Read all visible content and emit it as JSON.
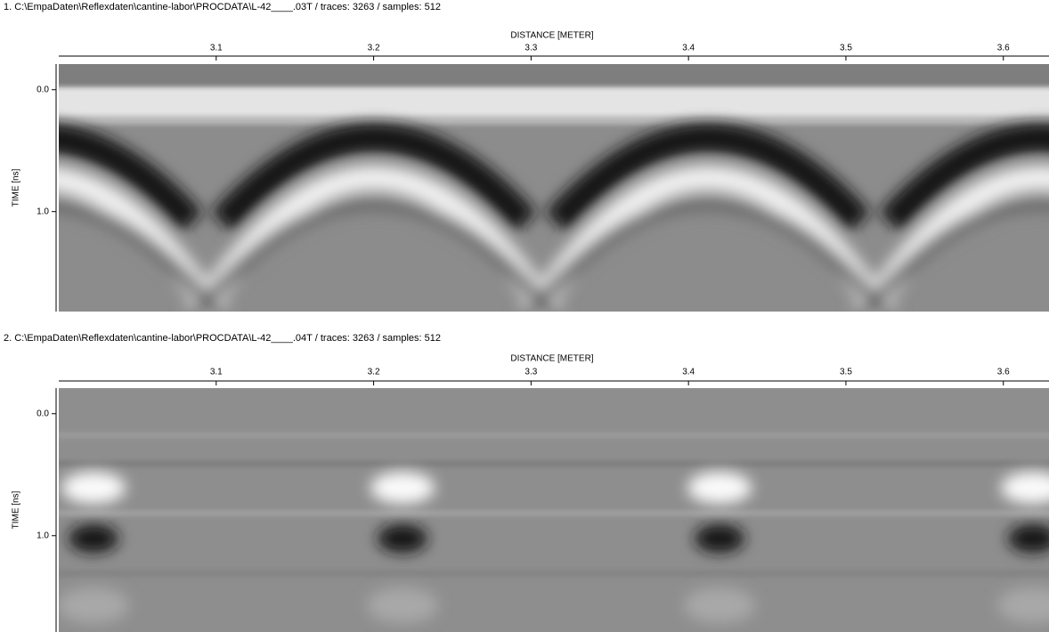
{
  "panels": [
    {
      "title": "1. C:\\EmpaDaten\\Reflexdaten\\cantine-labor\\PROCDATA\\L-42____.03T / traces: 3263 / samples: 512",
      "x_axis_label": "DISTANCE [METER]",
      "y_axis_label": "TIME [ns]",
      "xlim": [
        3.0,
        3.629
      ],
      "xticks": [
        3.1,
        3.2,
        3.3,
        3.4,
        3.5,
        3.6
      ],
      "ylim": [
        -0.21,
        1.82
      ],
      "yticks": [
        {
          "value": 0,
          "label": "0.0"
        },
        {
          "value": 1,
          "label": "1.0"
        }
      ]
    },
    {
      "title": "2. C:\\EmpaDaten\\Reflexdaten\\cantine-labor\\PROCDATA\\L-42____.04T / traces: 3263 / samples: 512",
      "x_axis_label": "DISTANCE [METER]",
      "y_axis_label": "TIME [ns]",
      "xlim": [
        3.0,
        3.629
      ],
      "xticks": [
        3.1,
        3.2,
        3.3,
        3.4,
        3.5,
        3.6
      ],
      "ylim": [
        -0.21,
        1.79
      ],
      "yticks": [
        {
          "value": 0,
          "label": "0.0"
        },
        {
          "value": 1,
          "label": "1.0"
        }
      ]
    }
  ]
}
